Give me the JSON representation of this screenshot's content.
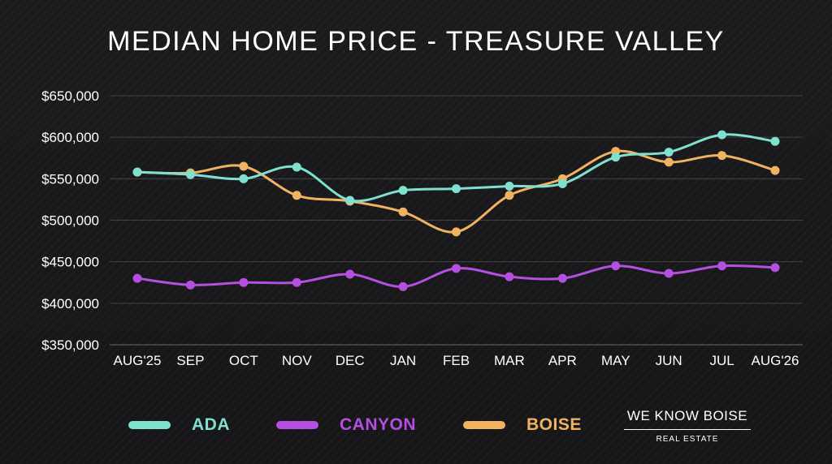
{
  "title": "MEDIAN HOME PRICE - TREASURE VALLEY",
  "logo": {
    "main": "WE KNOW BOISE",
    "sub": "REAL ESTATE"
  },
  "legend": [
    {
      "label": "ADA",
      "color": "#7fe0d0"
    },
    {
      "label": "CANYON",
      "color": "#b44fe0"
    },
    {
      "label": "BOISE",
      "color": "#f0b261"
    }
  ],
  "chart_data": {
    "type": "line",
    "title": "MEDIAN HOME PRICE - TREASURE VALLEY",
    "categories": [
      "AUG'25",
      "SEP",
      "OCT",
      "NOV",
      "DEC",
      "JAN",
      "FEB",
      "MAR",
      "APR",
      "MAY",
      "JUN",
      "JUL",
      "AUG'26"
    ],
    "ylim": [
      350000,
      650000
    ],
    "yticks": [
      "$350,000",
      "$400,000",
      "$450,000",
      "$500,000",
      "$550,000",
      "$600,000",
      "$650,000"
    ],
    "grid": true,
    "legend_position": "bottom",
    "series": [
      {
        "name": "ADA",
        "color": "#7fe0d0",
        "values": [
          558000,
          555000,
          550000,
          564000,
          524000,
          536000,
          538000,
          541000,
          544000,
          576000,
          582000,
          603000,
          595000
        ]
      },
      {
        "name": "CANYON",
        "color": "#b44fe0",
        "values": [
          430000,
          422000,
          425000,
          425000,
          435000,
          420000,
          442000,
          432000,
          430000,
          445000,
          436000,
          445000,
          443000
        ]
      },
      {
        "name": "BOISE",
        "color": "#f0b261",
        "values": [
          558000,
          557000,
          565000,
          530000,
          523000,
          510000,
          486000,
          530000,
          550000,
          583000,
          570000,
          578000,
          560000
        ]
      }
    ]
  }
}
